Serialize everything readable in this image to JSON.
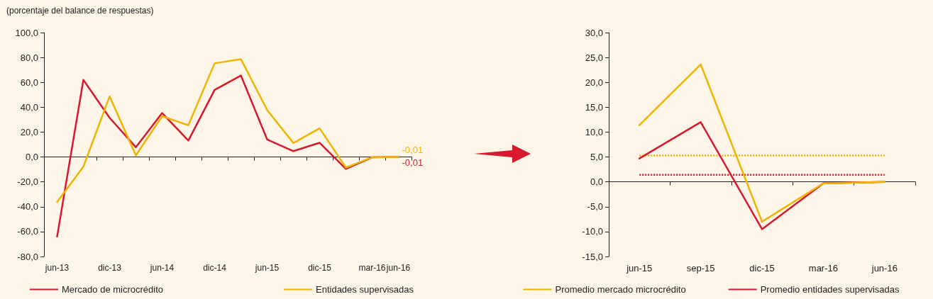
{
  "chart_data": [
    {
      "type": "line",
      "ylabel": "(porcentaje del balance de respuestas)",
      "categories": [
        "jun-13",
        null,
        "dic-13",
        null,
        "jun-14",
        null,
        "dic-14",
        null,
        "jun-15",
        null,
        "dic-15",
        null,
        "mar-16",
        "jun-16"
      ],
      "series": [
        {
          "name": "Mercado de microcrédito",
          "color": "#d7192d",
          "values": [
            -64,
            62,
            31.5,
            7.8,
            35.3,
            13.2,
            53.9,
            65.5,
            14.1,
            4.7,
            11.4,
            -9.6,
            -0.3,
            -0.01
          ],
          "value_labels": [
            null,
            null,
            null,
            null,
            null,
            null,
            null,
            null,
            null,
            null,
            null,
            null,
            null,
            "-0,01"
          ]
        },
        {
          "name": "Entidades supervisadas",
          "color": "#f0b400",
          "values": [
            -36.2,
            -7.8,
            48.7,
            1.3,
            32.8,
            25.5,
            75.3,
            78.7,
            37.8,
            11.2,
            23,
            -8.5,
            -0.3,
            -0.01
          ],
          "value_labels": [
            null,
            null,
            null,
            null,
            null,
            null,
            null,
            null,
            null,
            null,
            null,
            null,
            null,
            "-0,01"
          ]
        }
      ],
      "ylim": [
        -80,
        100
      ],
      "yticks": [
        {
          "value": -80,
          "label": "-80,0"
        },
        {
          "value": -60,
          "label": "-60,0"
        },
        {
          "value": -40,
          "label": "-40,0"
        },
        {
          "value": -20,
          "label": "-20,0"
        },
        {
          "value": 0,
          "label": "0,0"
        },
        {
          "value": 20,
          "label": "20,0"
        },
        {
          "value": 40,
          "label": "40,0"
        },
        {
          "value": 60,
          "label": "60,0"
        },
        {
          "value": 80,
          "label": "80,0"
        },
        {
          "value": 100,
          "label": "100,0"
        }
      ],
      "legend": "bottom",
      "marker": "none",
      "line_style": "solid"
    },
    {
      "type": "line",
      "categories": [
        "jun-15",
        "sep-15",
        "dic-15",
        "mar-16",
        "jun-16"
      ],
      "series": [
        {
          "color": "#d7192d",
          "values": [
            4.7,
            12,
            -9.5,
            -0.3,
            0
          ]
        },
        {
          "color": "#f0b400",
          "values": [
            11.4,
            23.6,
            -8,
            -0.3,
            0
          ]
        },
        {
          "name": "Promedio mercado microcrédito",
          "color": "#f0b400",
          "values": [
            5.3,
            5.3,
            5.3,
            5.3,
            5.3
          ],
          "line_style": "dotted"
        },
        {
          "name": "Promedio entidades supervisadas",
          "color": "#d7192d",
          "values": [
            1.4,
            1.4,
            1.4,
            1.4,
            1.4
          ],
          "line_style": "dotted"
        }
      ],
      "ylim": [
        -15,
        30
      ],
      "yticks": [
        {
          "value": -15,
          "label": "-15,0"
        },
        {
          "value": -10,
          "label": "-10,0"
        },
        {
          "value": -5,
          "label": "-5,0"
        },
        {
          "value": 0,
          "label": "0,0"
        },
        {
          "value": 5,
          "label": "5,0"
        },
        {
          "value": 10,
          "label": "10,0"
        },
        {
          "value": 15,
          "label": "15,0"
        },
        {
          "value": 20,
          "label": "20,0"
        },
        {
          "value": 25,
          "label": "25,0"
        },
        {
          "value": 30,
          "label": "30,0"
        }
      ],
      "legend": "bottom",
      "marker": "none",
      "line_style": "solid"
    }
  ]
}
